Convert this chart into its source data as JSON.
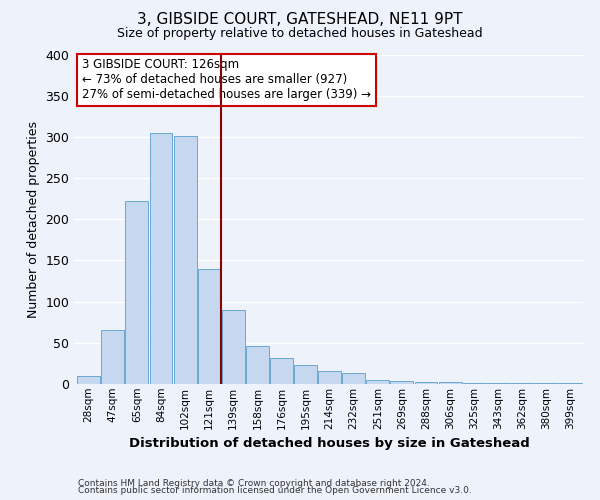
{
  "title": "3, GIBSIDE COURT, GATESHEAD, NE11 9PT",
  "subtitle": "Size of property relative to detached houses in Gateshead",
  "xlabel": "Distribution of detached houses by size in Gateshead",
  "ylabel": "Number of detached properties",
  "bar_color": "#c5d8f0",
  "bar_edge_color": "#6aaad4",
  "background_color": "#eef2fa",
  "grid_color": "#ffffff",
  "categories": [
    "28sqm",
    "47sqm",
    "65sqm",
    "84sqm",
    "102sqm",
    "121sqm",
    "139sqm",
    "158sqm",
    "176sqm",
    "195sqm",
    "214sqm",
    "232sqm",
    "251sqm",
    "269sqm",
    "288sqm",
    "306sqm",
    "325sqm",
    "343sqm",
    "362sqm",
    "380sqm",
    "399sqm"
  ],
  "values": [
    10,
    65,
    222,
    305,
    302,
    140,
    90,
    46,
    31,
    23,
    16,
    13,
    5,
    3,
    2,
    2,
    1,
    1,
    1,
    1,
    1
  ],
  "vline_color": "#8b0000",
  "ylim": [
    0,
    400
  ],
  "annotation_title": "3 GIBSIDE COURT: 126sqm",
  "annotation_line1": "← 73% of detached houses are smaller (927)",
  "annotation_line2": "27% of semi-detached houses are larger (339) →",
  "annotation_box_color": "#ffffff",
  "annotation_box_edge_color": "#cc0000",
  "footer_line1": "Contains HM Land Registry data © Crown copyright and database right 2024.",
  "footer_line2": "Contains public sector information licensed under the Open Government Licence v3.0."
}
